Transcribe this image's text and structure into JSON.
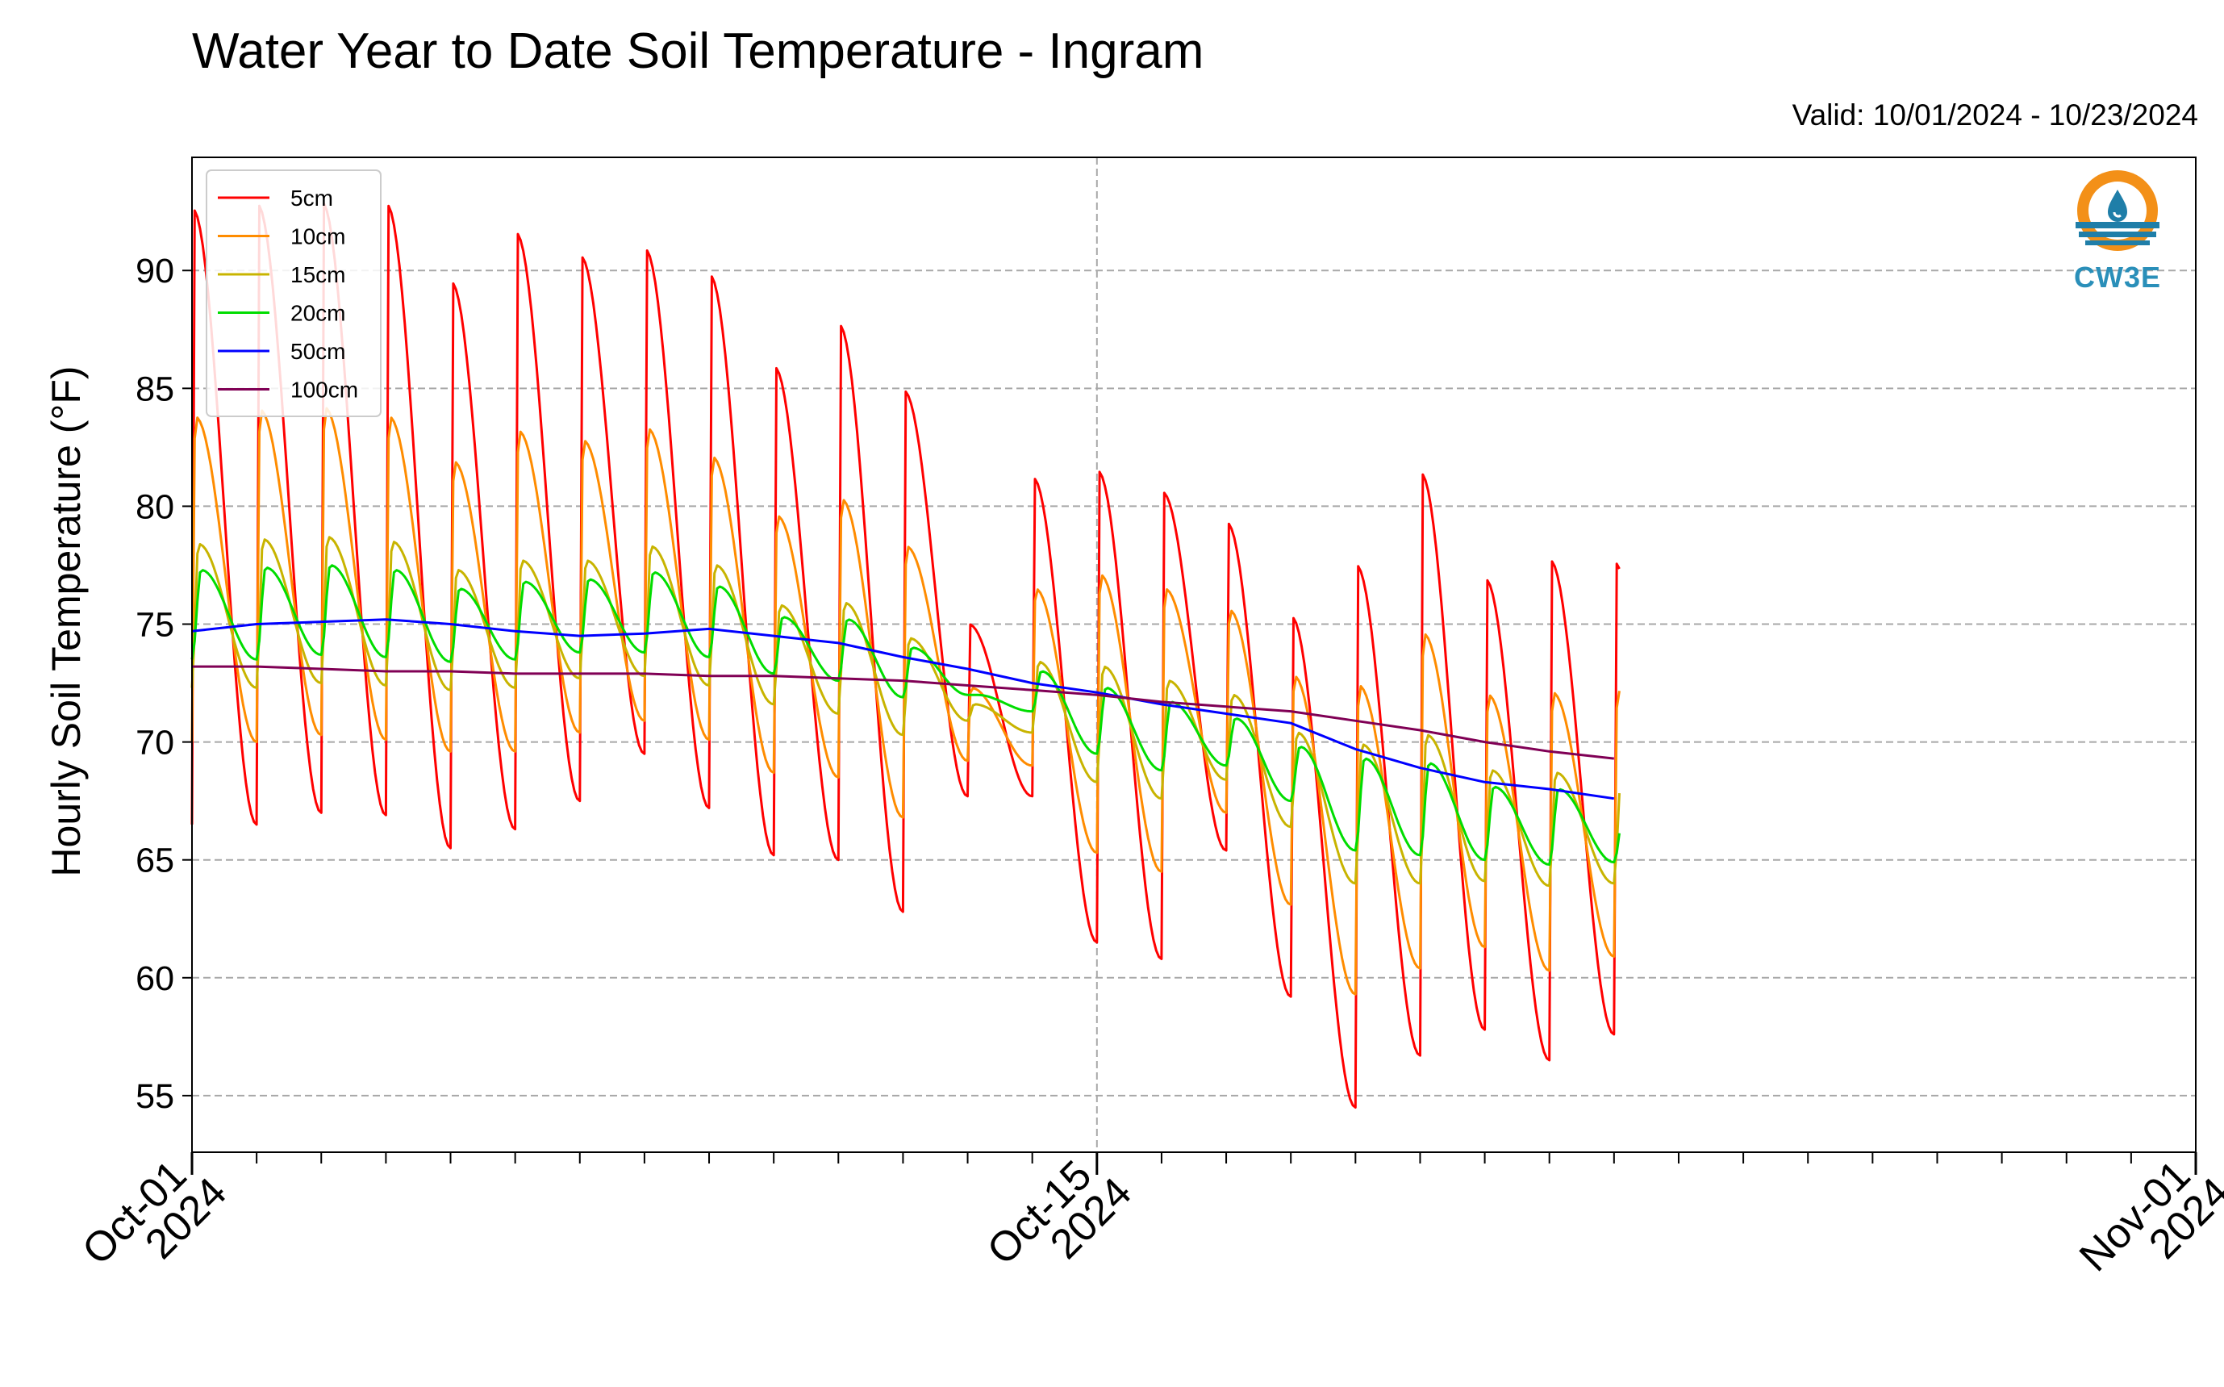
{
  "chart_data": {
    "type": "line",
    "title": "Water Year to Date Soil Temperature - Ingram",
    "subtitle": "Valid: 10/01/2024 - 10/23/2024",
    "ylabel": "Hourly Soil Temperature (°F)",
    "xlabel": "",
    "xlim": [
      "2024-10-01",
      "2024-11-01"
    ],
    "ylim": [
      52.6,
      94.8
    ],
    "grid": true,
    "legend_position": "top-left",
    "x_ticks": [
      {
        "date": "2024-10-01",
        "line1": "Oct-01",
        "line2": "2024"
      },
      {
        "date": "2024-10-15",
        "line1": "Oct-15",
        "line2": "2024"
      },
      {
        "date": "2024-11-01",
        "line1": "Nov-01",
        "line2": "2024"
      }
    ],
    "y_ticks": [
      55,
      60,
      65,
      70,
      75,
      80,
      85,
      90
    ],
    "data_start": "2024-10-01T00:00",
    "data_end": "2024-10-23T02:00",
    "series": [
      {
        "name": "5cm",
        "color": "#ff0000",
        "daily_max": [
          92.6,
          92.8,
          92.9,
          92.8,
          89.5,
          91.6,
          90.6,
          90.9,
          89.8,
          85.9,
          87.7,
          84.9,
          75.0,
          81.2,
          81.5,
          80.6,
          79.3,
          75.3,
          77.5,
          81.4,
          76.9,
          77.7,
          77.6
        ],
        "daily_min": [
          66.5,
          67.0,
          66.9,
          65.5,
          66.3,
          67.5,
          69.5,
          67.2,
          65.2,
          65.0,
          62.8,
          67.7,
          67.7,
          61.5,
          60.8,
          65.4,
          59.2,
          54.5,
          56.7,
          57.8,
          56.5,
          57.6
        ]
      },
      {
        "name": "10cm",
        "color": "#ff8c00",
        "daily_max": [
          83.8,
          84.1,
          84.2,
          83.8,
          81.9,
          83.2,
          82.8,
          83.3,
          82.1,
          79.6,
          80.3,
          78.3,
          72.3,
          76.5,
          77.1,
          76.5,
          75.6,
          72.8,
          72.4,
          74.6,
          72.0,
          72.1,
          72.2
        ],
        "daily_min": [
          70.0,
          70.3,
          70.1,
          69.6,
          69.6,
          70.4,
          70.9,
          70.1,
          68.7,
          68.5,
          66.8,
          69.2,
          69.0,
          65.3,
          64.5,
          67.0,
          63.1,
          59.3,
          60.4,
          61.3,
          60.3,
          60.9
        ]
      },
      {
        "name": "15cm",
        "color": "#c8b400",
        "daily_max": [
          78.4,
          78.6,
          78.7,
          78.5,
          77.3,
          77.7,
          77.7,
          78.3,
          77.5,
          75.8,
          75.9,
          74.4,
          71.6,
          73.4,
          73.2,
          72.6,
          72.0,
          70.4,
          69.9,
          70.3,
          68.8,
          68.7,
          68.1
        ],
        "daily_min": [
          72.3,
          72.5,
          72.4,
          72.2,
          72.3,
          72.7,
          72.8,
          72.4,
          71.6,
          71.2,
          70.3,
          70.9,
          70.4,
          68.3,
          67.6,
          68.4,
          66.4,
          64.0,
          64.0,
          64.1,
          63.9,
          64.0
        ]
      },
      {
        "name": "20cm",
        "color": "#00dd00",
        "daily_max": [
          77.3,
          77.4,
          77.5,
          77.3,
          76.5,
          76.8,
          76.9,
          77.2,
          76.6,
          75.3,
          75.2,
          74.0,
          72.0,
          73.0,
          72.3,
          71.7,
          71.0,
          69.8,
          69.3,
          69.1,
          68.1,
          68.0,
          66.8
        ],
        "daily_min": [
          73.5,
          73.7,
          73.6,
          73.4,
          73.5,
          73.8,
          73.8,
          73.6,
          72.9,
          72.6,
          71.9,
          72.0,
          71.3,
          69.5,
          68.8,
          69.0,
          67.5,
          65.4,
          65.2,
          65.0,
          64.8,
          64.9
        ]
      },
      {
        "name": "50cm",
        "color": "#0000ff",
        "points": [
          [
            0,
            74.7
          ],
          [
            1,
            75.0
          ],
          [
            2,
            75.1
          ],
          [
            3,
            75.2
          ],
          [
            4,
            75.0
          ],
          [
            5,
            74.7
          ],
          [
            6,
            74.5
          ],
          [
            7,
            74.6
          ],
          [
            8,
            74.8
          ],
          [
            9,
            74.5
          ],
          [
            10,
            74.2
          ],
          [
            11,
            73.6
          ],
          [
            12,
            73.1
          ],
          [
            13,
            72.5
          ],
          [
            14,
            72.1
          ],
          [
            15,
            71.6
          ],
          [
            16,
            71.2
          ],
          [
            17,
            70.8
          ],
          [
            18,
            69.7
          ],
          [
            19,
            68.9
          ],
          [
            20,
            68.3
          ],
          [
            21,
            68.0
          ],
          [
            22,
            67.6
          ]
        ]
      },
      {
        "name": "100cm",
        "color": "#800055",
        "points": [
          [
            0,
            73.2
          ],
          [
            1,
            73.2
          ],
          [
            2,
            73.1
          ],
          [
            3,
            73.0
          ],
          [
            4,
            73.0
          ],
          [
            5,
            72.9
          ],
          [
            6,
            72.9
          ],
          [
            7,
            72.9
          ],
          [
            8,
            72.8
          ],
          [
            9,
            72.8
          ],
          [
            10,
            72.7
          ],
          [
            11,
            72.6
          ],
          [
            12,
            72.4
          ],
          [
            13,
            72.2
          ],
          [
            14,
            72.0
          ],
          [
            15,
            71.7
          ],
          [
            16,
            71.5
          ],
          [
            17,
            71.3
          ],
          [
            18,
            70.9
          ],
          [
            19,
            70.5
          ],
          [
            20,
            70.0
          ],
          [
            21,
            69.6
          ],
          [
            22,
            69.3
          ]
        ]
      }
    ]
  },
  "logo": {
    "text": "CW3E",
    "ring_color": "#f39018",
    "wave_color": "#1f7ea8",
    "text_color": "#2a8fb9"
  }
}
